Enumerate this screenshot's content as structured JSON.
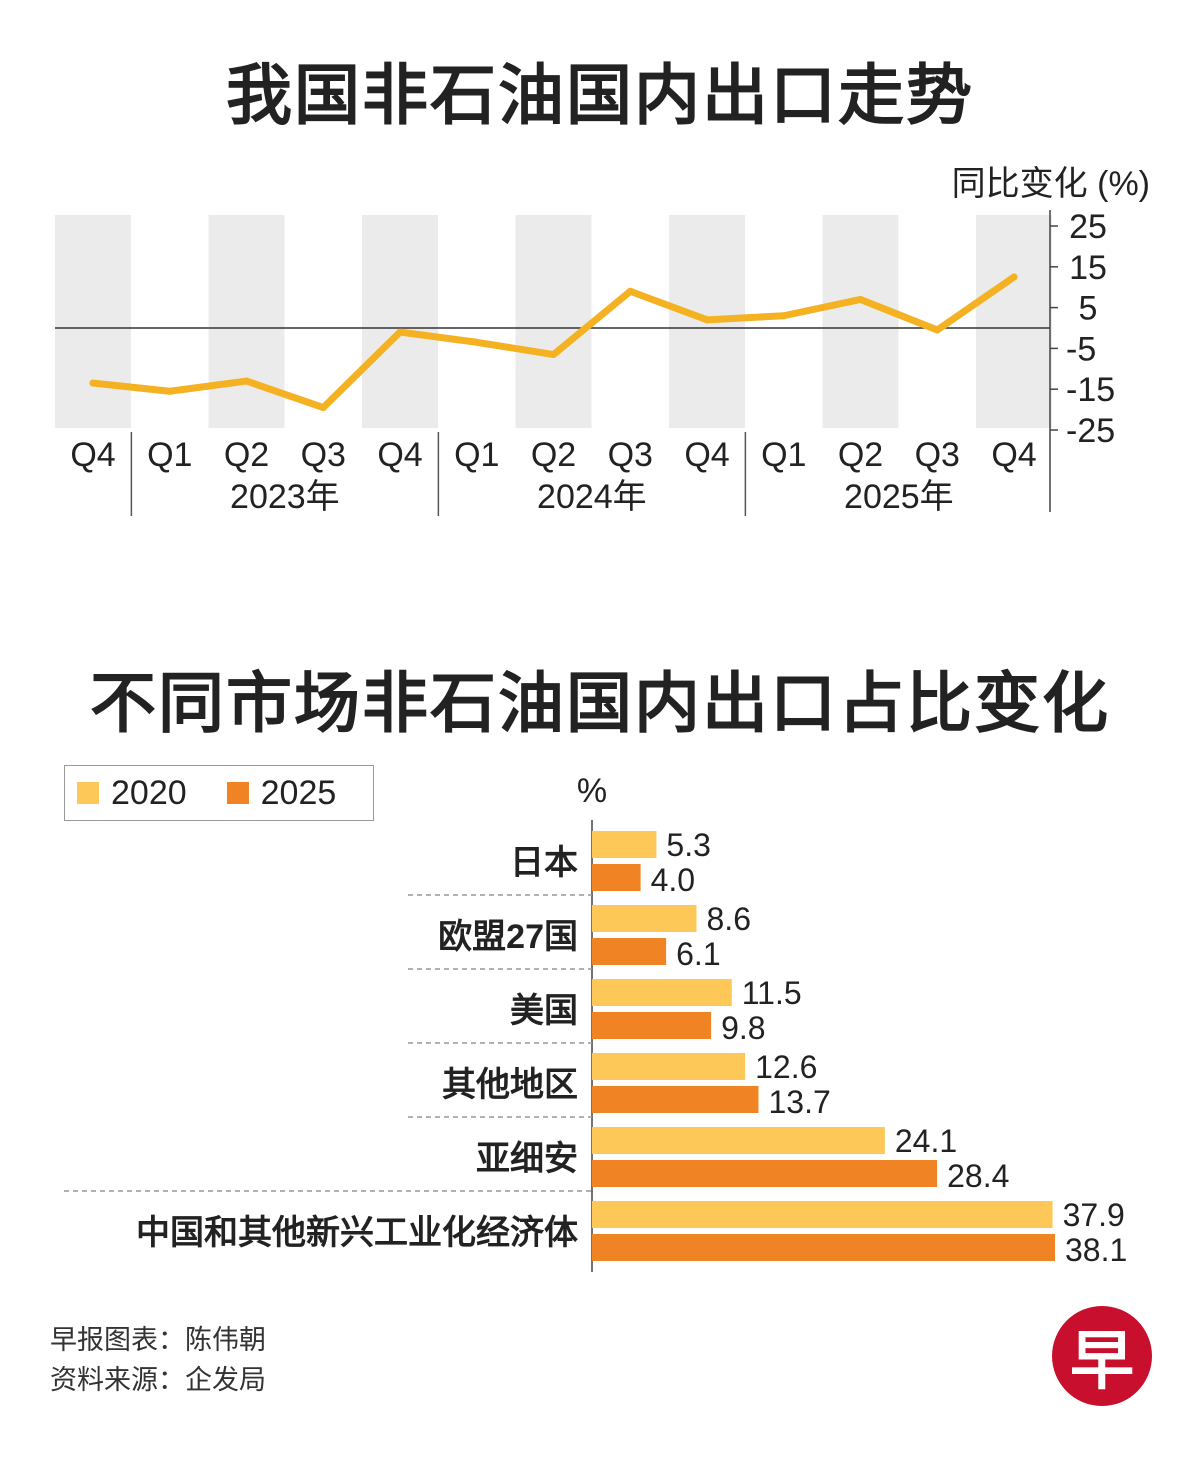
{
  "colors": {
    "line": "#f4b223",
    "bar2020": "#fdc857",
    "bar2025": "#f08324",
    "band": "#ebebeb",
    "text": "#222222",
    "logo": "#c8102e"
  },
  "chart_data": [
    {
      "type": "line",
      "title": "我国非石油国内出口走势",
      "ylabel": "同比变化 (%)",
      "ylim": [
        -25,
        25
      ],
      "yticks": [
        "25",
        "15",
        "5",
        "-5",
        "-15",
        "-25"
      ],
      "yticks_values": [
        25,
        15,
        5,
        -5,
        -15,
        -25
      ],
      "categories": [
        "Q4",
        "Q1",
        "Q2",
        "Q3",
        "Q4",
        "Q1",
        "Q2",
        "Q3",
        "Q4",
        "Q1",
        "Q2",
        "Q3",
        "Q4"
      ],
      "groups": [
        "2023年",
        "2024年",
        "2025年"
      ],
      "values": [
        -13.5,
        -15.5,
        -13,
        -19.5,
        -1,
        -3.5,
        -6.5,
        9,
        2,
        3,
        7,
        -0.5,
        12.5
      ]
    },
    {
      "type": "bar",
      "title": "不同市场非石油国内出口占比变化",
      "unit": "%",
      "categories": [
        "日本",
        "欧盟27国",
        "美国",
        "其他地区",
        "亚细安",
        "中国和其他新兴工业化经济体"
      ],
      "series": [
        {
          "name": "2020",
          "values": [
            5.3,
            8.6,
            11.5,
            12.6,
            24.1,
            37.9
          ],
          "labels": [
            "5.3",
            "8.6",
            "11.5",
            "12.6",
            "24.1",
            "37.9"
          ]
        },
        {
          "name": "2025",
          "values": [
            4.0,
            6.1,
            9.8,
            13.7,
            28.4,
            38.1
          ],
          "labels": [
            "4.0",
            "6.1",
            "9.8",
            "13.7",
            "28.4",
            "38.1"
          ]
        }
      ],
      "xlim": [
        0,
        38.1
      ]
    }
  ],
  "footer": {
    "credit": "早报图表：陈伟朝",
    "source": "资料来源：企发局",
    "logo_char": "早"
  }
}
